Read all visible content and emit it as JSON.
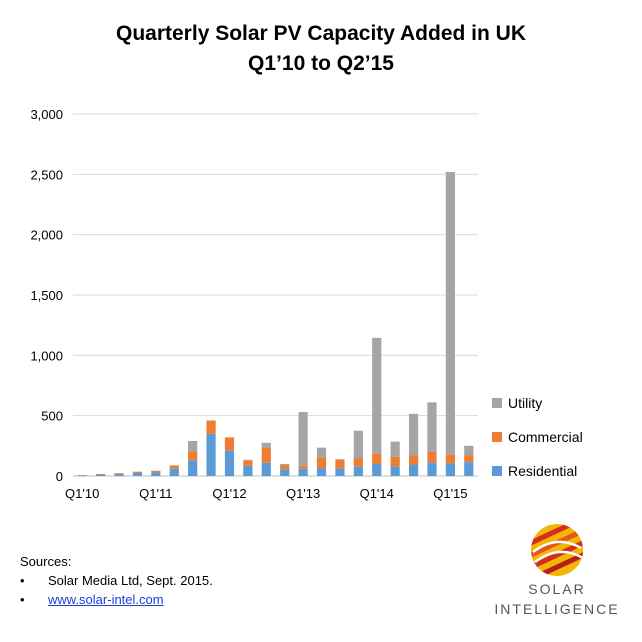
{
  "chart_data": {
    "type": "bar",
    "stacked": true,
    "title": "Quarterly Solar PV Capacity Added in UK",
    "subtitle": "Q1’10 to Q2’15",
    "categories": [
      "Q1'10",
      "Q2'10",
      "Q3'10",
      "Q4'10",
      "Q1'11",
      "Q2'11",
      "Q3'11",
      "Q4'11",
      "Q1'12",
      "Q2'12",
      "Q3'12",
      "Q4'12",
      "Q1'13",
      "Q2'13",
      "Q3'13",
      "Q4'13",
      "Q1'14",
      "Q2'14",
      "Q3'14",
      "Q4'14",
      "Q1'15",
      "Q2'15"
    ],
    "x_tick_labels": [
      "Q1'10",
      "",
      "",
      "",
      "Q1'11",
      "",
      "",
      "",
      "Q1'12",
      "",
      "",
      "",
      "Q1'13",
      "",
      "",
      "",
      "Q1'14",
      "",
      "",
      "",
      "Q1'15",
      ""
    ],
    "series": [
      {
        "name": "Residential",
        "color": "#5b9bd5",
        "values": [
          5,
          12,
          16,
          25,
          30,
          60,
          130,
          350,
          210,
          85,
          110,
          55,
          60,
          65,
          65,
          80,
          100,
          80,
          95,
          110,
          105,
          115
        ]
      },
      {
        "name": "Commercial",
        "color": "#ed7d31",
        "values": [
          3,
          5,
          7,
          10,
          12,
          25,
          75,
          110,
          110,
          45,
          125,
          35,
          25,
          90,
          70,
          65,
          85,
          80,
          75,
          90,
          75,
          55
        ]
      },
      {
        "name": "Utility",
        "color": "#a5a5a5",
        "values": [
          0,
          0,
          2,
          2,
          2,
          5,
          85,
          0,
          0,
          5,
          40,
          10,
          445,
          80,
          5,
          230,
          960,
          125,
          345,
          410,
          2340,
          80
        ]
      }
    ],
    "ylim": [
      0,
      3000
    ],
    "yticks": [
      0,
      500,
      1000,
      1500,
      2000,
      2500,
      3000
    ],
    "ytick_labels": [
      "0",
      "500",
      "1,000",
      "1,500",
      "2,000",
      "2,500",
      "3,000"
    ],
    "grid": true,
    "legend_placement": "right"
  },
  "sources": {
    "heading": "Sources:",
    "items": [
      "Solar Media Ltd, Sept. 2015.",
      "www.solar-intel.com"
    ],
    "bullet": "•"
  },
  "logo": {
    "line1": "SOLAR",
    "line2": "INTELLIGENCE"
  }
}
